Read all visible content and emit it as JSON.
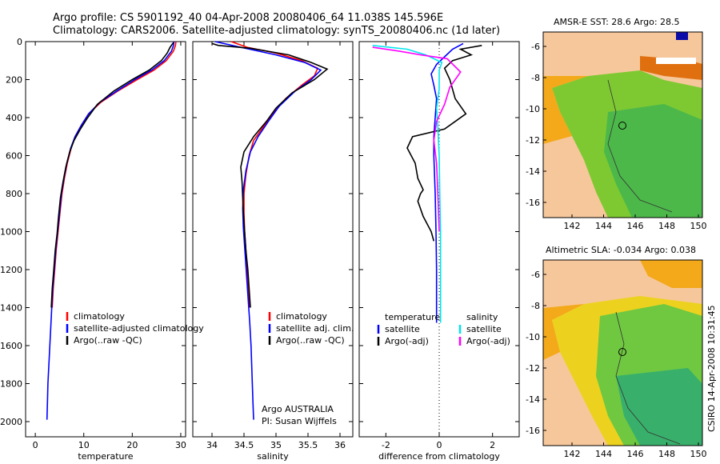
{
  "header": {
    "line1": "Argo profile: CS 5901192_40 04-Apr-2008 20080406_64 11.038S 145.596E",
    "line2": "Climatology: CARS2006. Satellite-adjusted climatology: synTS_20080406.nc (1d later)"
  },
  "colors": {
    "climatology": "#ff0000",
    "satellite": "#0000ff",
    "argo": "#000000",
    "sat_salinity": "#00e5ee",
    "argo_salinity": "#ff00ff"
  },
  "chart_data": [
    {
      "id": "temperature",
      "type": "line",
      "xlabel": "temperature",
      "ylabel": "depth",
      "xlim": [
        -2,
        31
      ],
      "ylim": [
        0,
        2080
      ],
      "xticks": [
        0,
        10,
        20,
        30
      ],
      "yticks": [
        0,
        200,
        400,
        600,
        800,
        1000,
        1200,
        1400,
        1600,
        1800,
        2000
      ],
      "legend": [
        "climatology",
        "satellite-adjusted climatology",
        "Argo(..raw -QC)"
      ],
      "series": [
        {
          "name": "climatology",
          "color": "#ff0000",
          "points": [
            [
              29,
              0
            ],
            [
              28.9,
              20
            ],
            [
              28.5,
              50
            ],
            [
              27,
              100
            ],
            [
              24.5,
              150
            ],
            [
              21,
              200
            ],
            [
              17,
              260
            ],
            [
              13.5,
              320
            ],
            [
              11,
              380
            ],
            [
              9.5,
              440
            ],
            [
              8.2,
              500
            ],
            [
              7.4,
              560
            ],
            [
              6.6,
              640
            ],
            [
              6,
              720
            ],
            [
              5.5,
              800
            ],
            [
              5.1,
              900
            ],
            [
              4.7,
              1000
            ],
            [
              4.3,
              1100
            ],
            [
              4,
              1200
            ],
            [
              3.7,
              1300
            ],
            [
              3.5,
              1400
            ]
          ]
        },
        {
          "name": "satellite-adjusted climatology",
          "color": "#0000ff",
          "points": [
            [
              28.6,
              0
            ],
            [
              28.5,
              20
            ],
            [
              28.1,
              50
            ],
            [
              26.6,
              100
            ],
            [
              24,
              150
            ],
            [
              20.5,
              200
            ],
            [
              16.8,
              260
            ],
            [
              13.3,
              320
            ],
            [
              11,
              380
            ],
            [
              9.5,
              440
            ],
            [
              8.2,
              500
            ],
            [
              7.3,
              560
            ],
            [
              6.5,
              640
            ],
            [
              5.9,
              720
            ],
            [
              5.4,
              800
            ],
            [
              5,
              900
            ],
            [
              4.6,
              1000
            ],
            [
              4.2,
              1100
            ],
            [
              3.9,
              1200
            ],
            [
              3.6,
              1300
            ],
            [
              3.4,
              1400
            ],
            [
              3.2,
              1500
            ],
            [
              3,
              1600
            ],
            [
              2.8,
              1700
            ],
            [
              2.6,
              1800
            ],
            [
              2.5,
              1900
            ],
            [
              2.4,
              1990
            ]
          ]
        },
        {
          "name": "Argo(..raw -QC)",
          "color": "#000000",
          "points": [
            [
              28.5,
              5
            ],
            [
              27.8,
              30
            ],
            [
              27.2,
              60
            ],
            [
              26,
              100
            ],
            [
              23.5,
              150
            ],
            [
              20,
              200
            ],
            [
              16.2,
              260
            ],
            [
              12.8,
              330
            ],
            [
              10.8,
              400
            ],
            [
              9.3,
              460
            ],
            [
              8,
              520
            ],
            [
              7.1,
              580
            ],
            [
              6.3,
              660
            ],
            [
              5.7,
              740
            ],
            [
              5.2,
              820
            ],
            [
              4.8,
              920
            ],
            [
              4.5,
              1010
            ],
            [
              4.1,
              1100
            ],
            [
              3.8,
              1200
            ],
            [
              3.5,
              1300
            ],
            [
              3.3,
              1400
            ]
          ]
        }
      ]
    },
    {
      "id": "salinity",
      "type": "line",
      "xlabel": "salinity",
      "ylabel": "depth",
      "xlim": [
        33.7,
        36.2
      ],
      "ylim": [
        0,
        2080
      ],
      "xticks": [
        34,
        34.5,
        35,
        35.5,
        36
      ],
      "yticks": [
        0,
        200,
        400,
        600,
        800,
        1000,
        1200,
        1400,
        1600,
        1800,
        2000
      ],
      "legend": [
        "climatology",
        "satellite adj. clim.",
        "Argo(..raw -QC)"
      ],
      "annotations": [
        "Argo AUSTRALIA",
        "PI: Susan Wijffels"
      ],
      "series": [
        {
          "name": "climatology",
          "color": "#ff0000",
          "points": [
            [
              34.3,
              0
            ],
            [
              34.55,
              30
            ],
            [
              35.0,
              60
            ],
            [
              35.4,
              100
            ],
            [
              35.65,
              140
            ],
            [
              35.6,
              180
            ],
            [
              35.4,
              230
            ],
            [
              35.15,
              300
            ],
            [
              34.95,
              380
            ],
            [
              34.8,
              450
            ],
            [
              34.65,
              520
            ],
            [
              34.58,
              600
            ],
            [
              34.53,
              700
            ],
            [
              34.5,
              800
            ],
            [
              34.5,
              900
            ],
            [
              34.51,
              1000
            ],
            [
              34.53,
              1100
            ],
            [
              34.55,
              1200
            ],
            [
              34.57,
              1300
            ],
            [
              34.59,
              1400
            ]
          ]
        },
        {
          "name": "satellite adj. clim.",
          "color": "#0000ff",
          "points": [
            [
              34.05,
              0
            ],
            [
              34.45,
              30
            ],
            [
              35,
              70
            ],
            [
              35.45,
              110
            ],
            [
              35.7,
              150
            ],
            [
              35.55,
              200
            ],
            [
              35.3,
              260
            ],
            [
              35.05,
              340
            ],
            [
              34.88,
              420
            ],
            [
              34.72,
              500
            ],
            [
              34.6,
              580
            ],
            [
              34.53,
              680
            ],
            [
              34.49,
              780
            ],
            [
              34.48,
              880
            ],
            [
              34.49,
              980
            ],
            [
              34.51,
              1080
            ],
            [
              34.53,
              1180
            ],
            [
              34.55,
              1280
            ],
            [
              34.57,
              1380
            ],
            [
              34.59,
              1480
            ],
            [
              34.61,
              1600
            ],
            [
              34.62,
              1700
            ],
            [
              34.63,
              1800
            ],
            [
              34.64,
              1900
            ],
            [
              34.65,
              1990
            ]
          ]
        },
        {
          "name": "Argo(..raw -QC)",
          "color": "#000000",
          "points": [
            [
              34.0,
              10
            ],
            [
              34.1,
              20
            ],
            [
              34.6,
              35
            ],
            [
              35.2,
              70
            ],
            [
              35.55,
              110
            ],
            [
              35.8,
              145
            ],
            [
              35.6,
              200
            ],
            [
              35.25,
              270
            ],
            [
              35.0,
              350
            ],
            [
              34.85,
              420
            ],
            [
              34.65,
              500
            ],
            [
              34.5,
              580
            ],
            [
              34.45,
              660
            ],
            [
              34.47,
              740
            ],
            [
              34.48,
              820
            ],
            [
              34.49,
              900
            ],
            [
              34.51,
              1000
            ],
            [
              34.53,
              1100
            ],
            [
              34.56,
              1200
            ],
            [
              34.58,
              1300
            ],
            [
              34.6,
              1400
            ]
          ]
        }
      ]
    },
    {
      "id": "difference",
      "type": "line",
      "xlabel": "difference from climatology",
      "ylabel": "depth",
      "xlim": [
        -3,
        3
      ],
      "ylim": [
        0,
        2080
      ],
      "xticks": [
        -2,
        0,
        2
      ],
      "yticks": [
        0,
        200,
        400,
        600,
        800,
        1000,
        1200,
        1400,
        1600,
        1800,
        2000
      ],
      "legend_temperature_title": "temperature",
      "legend_salinity_title": "salinity",
      "legend": [
        "satellite",
        "Argo(-adj)",
        "satellite",
        "Argo(-adj)"
      ],
      "series": [
        {
          "name": "temperature satellite",
          "color": "#0000ff",
          "points": [
            [
              0.9,
              10
            ],
            [
              0.5,
              40
            ],
            [
              0.2,
              80
            ],
            [
              -0.1,
              120
            ],
            [
              -0.3,
              170
            ],
            [
              -0.2,
              230
            ],
            [
              -0.1,
              300
            ],
            [
              -0.15,
              400
            ],
            [
              -0.2,
              500
            ],
            [
              -0.2,
              600
            ],
            [
              -0.15,
              800
            ],
            [
              -0.12,
              1000
            ],
            [
              -0.1,
              1200
            ],
            [
              -0.1,
              1400
            ],
            [
              -0.1,
              1480
            ]
          ]
        },
        {
          "name": "temperature Argo(-adj)",
          "color": "#000000",
          "points": [
            [
              1.6,
              20
            ],
            [
              0.8,
              40
            ],
            [
              1.2,
              70
            ],
            [
              0.5,
              100
            ],
            [
              0.2,
              140
            ],
            [
              0.4,
              200
            ],
            [
              0.6,
              300
            ],
            [
              1.0,
              380
            ],
            [
              0.6,
              420
            ],
            [
              0.2,
              460
            ],
            [
              -1.0,
              500
            ],
            [
              -1.2,
              560
            ],
            [
              -0.9,
              640
            ],
            [
              -0.8,
              720
            ],
            [
              -0.6,
              780
            ],
            [
              -0.7,
              800
            ],
            [
              -0.8,
              840
            ],
            [
              -0.6,
              920
            ],
            [
              -0.3,
              1000
            ],
            [
              -0.2,
              1050
            ]
          ]
        },
        {
          "name": "salinity satellite",
          "color": "#00e5ee",
          "points": [
            [
              -2.5,
              20
            ],
            [
              -1.2,
              40
            ],
            [
              -0.5,
              70
            ],
            [
              0.1,
              110
            ],
            [
              0,
              150
            ],
            [
              0,
              250
            ],
            [
              -0.1,
              350
            ],
            [
              -0.05,
              450
            ],
            [
              0,
              600
            ],
            [
              0.02,
              800
            ],
            [
              0.05,
              1000
            ],
            [
              0.05,
              1200
            ],
            [
              0.05,
              1400
            ],
            [
              0.05,
              1480
            ]
          ]
        },
        {
          "name": "salinity Argo(-adj)",
          "color": "#ff00ff",
          "points": [
            [
              -2.5,
              30
            ],
            [
              -1.5,
              50
            ],
            [
              -0.7,
              70
            ],
            [
              0.3,
              90
            ],
            [
              0.8,
              160
            ],
            [
              0.4,
              240
            ],
            [
              0.2,
              330
            ],
            [
              -0.1,
              420
            ],
            [
              -0.2,
              520
            ],
            [
              -0.1,
              640
            ],
            [
              -0.05,
              800
            ],
            [
              0,
              1000
            ]
          ]
        }
      ]
    }
  ],
  "maps": [
    {
      "id": "sst-map",
      "title": "AMSR-E SST: 28.6 Argo: 28.5",
      "xticks": [
        "142",
        "144",
        "146",
        "148",
        "150"
      ],
      "yticks": [
        "-6",
        "-8",
        "-10",
        "-12",
        "-14",
        "-16"
      ]
    },
    {
      "id": "sla-map",
      "title": "Altimetric SLA: -0.034 Argo: 0.038",
      "xticks": [
        "142",
        "144",
        "146",
        "148",
        "150"
      ],
      "yticks": [
        "-6",
        "-8",
        "-10",
        "-12",
        "-14",
        "-16"
      ]
    }
  ],
  "footer_stamp": "CSIRO 14-Apr-2008 10:31:45"
}
